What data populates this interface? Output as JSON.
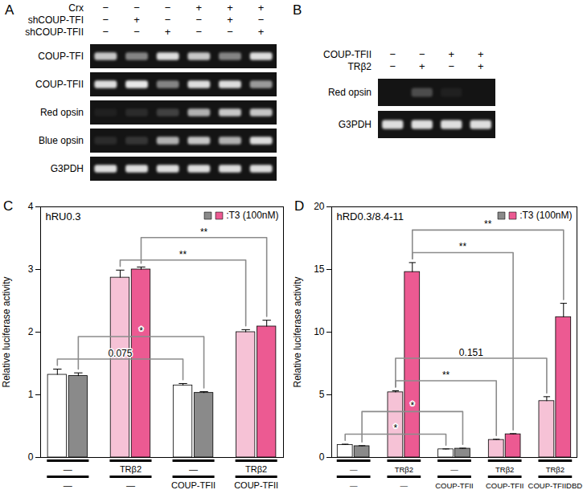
{
  "gels": [
    {
      "panel": "A",
      "conditions": [
        {
          "label": "Crx",
          "signs": [
            "−",
            "−",
            "−",
            "+",
            "+",
            "+"
          ]
        },
        {
          "label": "shCOUP-TFI",
          "signs": [
            "−",
            "+",
            "−",
            "−",
            "+",
            "−"
          ]
        },
        {
          "label": "shCOUP-TFII",
          "signs": [
            "−",
            "−",
            "+",
            "−",
            "−",
            "+"
          ]
        }
      ],
      "rows": [
        {
          "label": "COUP-TFI",
          "band_intensity": [
            0.8,
            0.5,
            0.9,
            0.8,
            0.5,
            0.9
          ]
        },
        {
          "label": "COUP-TFII",
          "band_intensity": [
            0.9,
            0.95,
            0.5,
            0.9,
            0.9,
            0.6
          ]
        },
        {
          "label": "Red opsin",
          "band_intensity": [
            0.05,
            0.1,
            0.2,
            0.7,
            0.8,
            0.8
          ]
        },
        {
          "label": "Blue opsin",
          "band_intensity": [
            0.1,
            0.15,
            0.7,
            0.8,
            0.7,
            0.9
          ]
        },
        {
          "label": "G3PDH",
          "band_intensity": [
            0.9,
            0.9,
            0.9,
            0.9,
            0.9,
            0.9
          ]
        }
      ]
    },
    {
      "panel": "B",
      "conditions": [
        {
          "label": "COUP-TFII",
          "signs": [
            "−",
            "−",
            "+",
            "+"
          ]
        },
        {
          "label": "TRβ2",
          "signs": [
            "−",
            "+",
            "−",
            "+"
          ]
        }
      ],
      "rows": [
        {
          "label": "Red opsin",
          "band_intensity": [
            0.0,
            0.25,
            0.05,
            0.0
          ]
        },
        {
          "label": "G3PDH",
          "band_intensity": [
            0.9,
            0.9,
            0.9,
            0.9
          ]
        }
      ]
    }
  ],
  "chart_data": [
    {
      "type": "bar",
      "panel": "C",
      "title": "hRU0.3",
      "y_label": "Relative luciferase activity",
      "categories": [
        [
          "—",
          "—"
        ],
        [
          "TRβ2",
          "—"
        ],
        [
          "—",
          "COUP-TFII"
        ],
        [
          "TRβ2",
          "COUP-TFII"
        ]
      ],
      "series": [
        {
          "colors": [
            "#ffffff",
            "#f6c2d6",
            "#ffffff",
            "#f6c2d6"
          ],
          "values": [
            1.32,
            2.87,
            1.15,
            2.0
          ],
          "errors": [
            0.09,
            0.12,
            0.03,
            0.04
          ]
        },
        {
          "colors": [
            "#8a8a8a",
            "#ec5a92",
            "#8a8a8a",
            "#ec5a92"
          ],
          "values": [
            1.3,
            3.0,
            1.03,
            2.09
          ],
          "errors": [
            0.05,
            0.04,
            0.02,
            0.1
          ]
        }
      ],
      "ylim": [
        0,
        4
      ],
      "yticks": [
        0,
        1,
        2,
        3,
        4
      ],
      "legend": "top-right",
      "legend_title": ":T3 (100nM)",
      "annotations": [
        {
          "label": "0.075",
          "series": 0,
          "from": 0,
          "to": 2
        },
        {
          "label": "*",
          "series": 1,
          "from": 0,
          "to": 2
        },
        {
          "label": "**",
          "series": 0,
          "from": 1,
          "to": 3
        },
        {
          "label": "**",
          "series": 1,
          "from": 1,
          "to": 3
        }
      ]
    },
    {
      "type": "bar",
      "panel": "D",
      "title": "hRD0.3/8.4-11",
      "y_label": "Relative luciferase activity",
      "categories": [
        [
          "—",
          "—"
        ],
        [
          "TRβ2",
          "—"
        ],
        [
          "—",
          "COUP-TFII"
        ],
        [
          "TRβ2",
          "COUP-TFII"
        ],
        [
          "TRβ2",
          "COUP-TFIIDBD"
        ]
      ],
      "series": [
        {
          "colors": [
            "#ffffff",
            "#f6c2d6",
            "#ffffff",
            "#f6c2d6",
            "#f6c2d6"
          ],
          "values": [
            1.0,
            5.2,
            0.65,
            1.4,
            4.5
          ],
          "errors": [
            0.06,
            0.12,
            0.03,
            0.05,
            0.35
          ]
        },
        {
          "colors": [
            "#8a8a8a",
            "#ec5a92",
            "#8a8a8a",
            "#ec5a92",
            "#ec5a92"
          ],
          "values": [
            0.9,
            14.8,
            0.7,
            1.85,
            11.2
          ],
          "errors": [
            0.04,
            0.75,
            0.04,
            0.05,
            1.1
          ]
        }
      ],
      "ylim": [
        0,
        20
      ],
      "yticks": [
        0,
        5,
        10,
        15,
        20
      ],
      "legend": "top-right",
      "legend_title": ":T3 (100nM)",
      "annotations": [
        {
          "label": "*",
          "series": 0,
          "from": 0,
          "to": 2
        },
        {
          "label": "*",
          "series": 1,
          "from": 0,
          "to": 2
        },
        {
          "label": "**",
          "series": 0,
          "from": 1,
          "to": 3
        },
        {
          "label": "**",
          "series": 1,
          "from": 1,
          "to": 3
        },
        {
          "label": "0.151",
          "series": 0,
          "from": 1,
          "to": 4
        },
        {
          "label": "**",
          "series": 1,
          "from": 1,
          "to": 4
        }
      ]
    }
  ]
}
